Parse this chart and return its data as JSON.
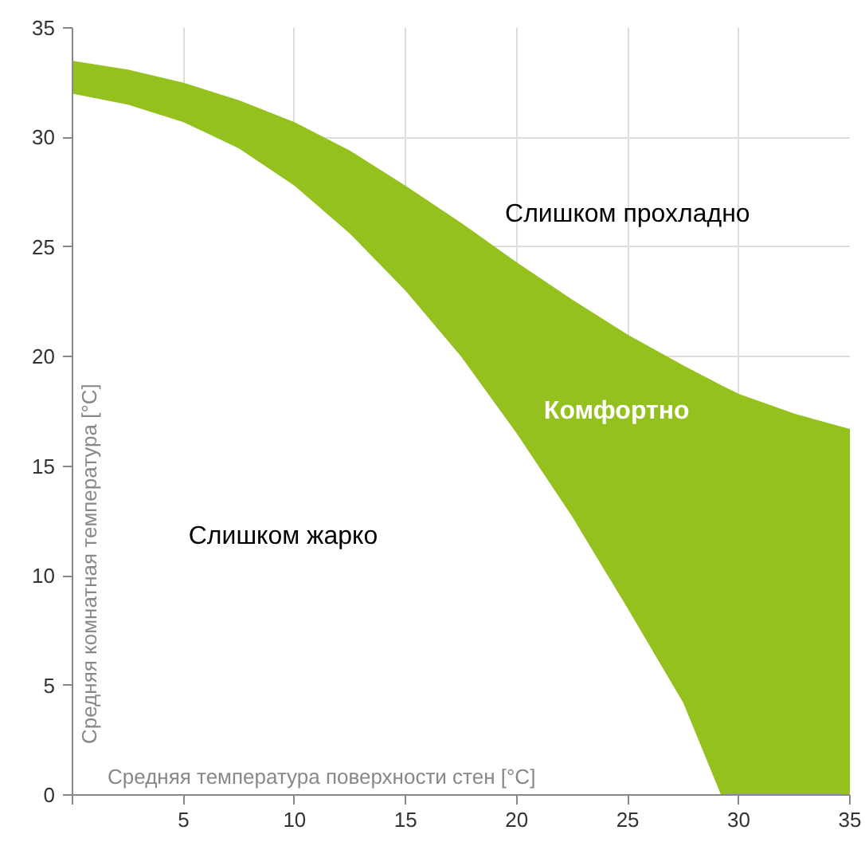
{
  "chart_data": {
    "type": "area",
    "stacked": true,
    "xlabel": "Средняя температура поверхности стен [°C]",
    "ylabel": "Средняя комнатная температура [°C]",
    "x": [
      0,
      2.5,
      5,
      7.5,
      10,
      12.5,
      15,
      17.5,
      20,
      22.5,
      25,
      27.5,
      29.2,
      30,
      32.5,
      35
    ],
    "series": [
      {
        "color": "#ffffff",
        "values": [
          32.0,
          31.5,
          30.7,
          29.5,
          27.8,
          25.6,
          23.0,
          20.0,
          16.5,
          12.7,
          8.5,
          4.2,
          0,
          0,
          0,
          0
        ]
      },
      {
        "color": "#95c11f",
        "values": [
          1.5,
          1.6,
          1.8,
          2.2,
          2.9,
          3.8,
          4.8,
          6.1,
          7.8,
          9.9,
          12.5,
          15.4,
          18.7,
          18.3,
          17.4,
          16.7
        ]
      }
    ],
    "xlim": [
      0,
      35
    ],
    "ylim": [
      0,
      35
    ],
    "xticks": [
      {
        "value": 0,
        "label": null
      },
      5,
      10,
      15,
      20,
      25,
      30,
      35
    ],
    "yticks": [
      0,
      5,
      10,
      15,
      20,
      25,
      30,
      35
    ],
    "grid": true,
    "annotations": [
      "Слишком прохладно",
      "Комфортно",
      "Слишком жарко"
    ]
  }
}
